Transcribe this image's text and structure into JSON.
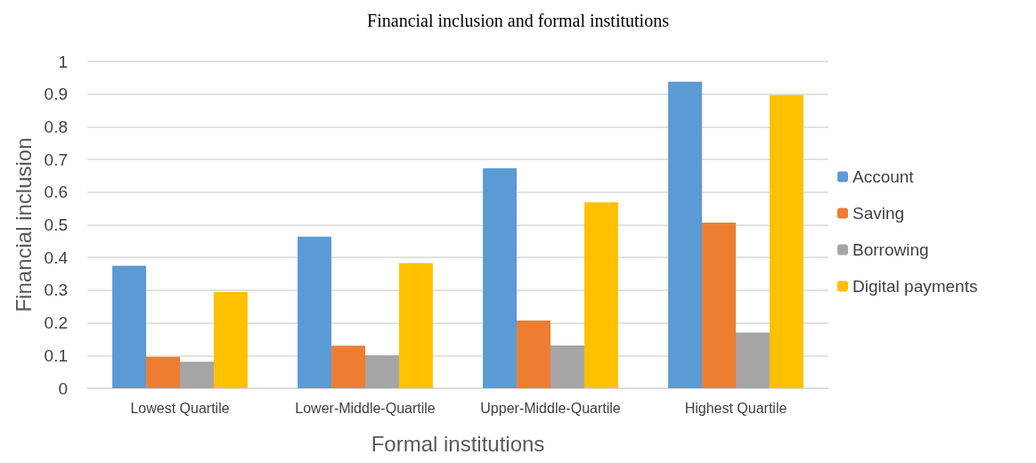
{
  "chart_data": {
    "type": "bar",
    "title": "Financial inclusion and formal institutions",
    "xlabel": "Formal institutions",
    "ylabel": "Financial inclusion",
    "categories": [
      "Lowest Quartile",
      "Lower-Middle-Quartile",
      "Upper-Middle-Quartile",
      "Highest Quartile"
    ],
    "series": [
      {
        "name": "Account",
        "color": "#5b9bd5",
        "values": [
          0.375,
          0.464,
          0.673,
          0.938
        ]
      },
      {
        "name": "Saving",
        "color": "#ed7d31",
        "values": [
          0.096,
          0.13,
          0.207,
          0.507
        ]
      },
      {
        "name": "Borrowing",
        "color": "#a5a5a5",
        "values": [
          0.081,
          0.101,
          0.131,
          0.17
        ]
      },
      {
        "name": "Digital payments",
        "color": "#ffc000",
        "values": [
          0.294,
          0.383,
          0.569,
          0.897
        ]
      }
    ],
    "ylim": [
      0,
      1
    ],
    "yticks": [
      0,
      0.1,
      0.2,
      0.3,
      0.4,
      0.5,
      0.6,
      0.7,
      0.8,
      0.9,
      1
    ],
    "grid": "y",
    "legend": "right"
  }
}
